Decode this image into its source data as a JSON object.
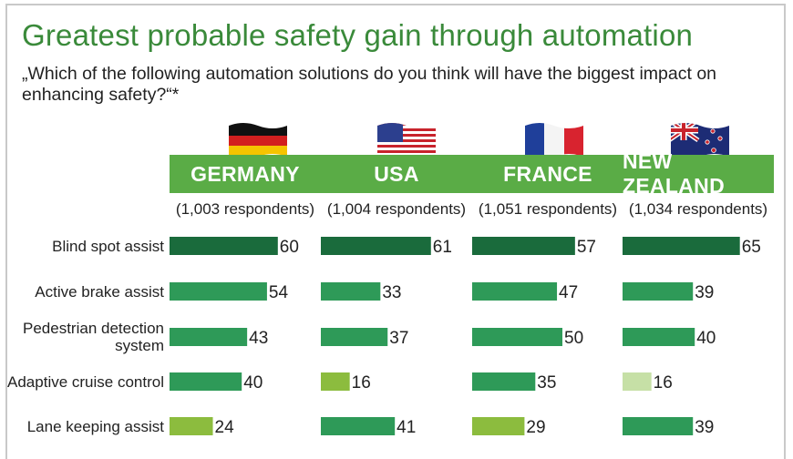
{
  "title": "Greatest probable safety gain through automation",
  "subtitle": "„Which of the following automation solutions do you think will have the biggest impact on enhancing safety?“*",
  "colors": {
    "title": "#3a8a3a",
    "header": "#5aac46",
    "dark": "#1a6b3c",
    "medium": "#2e9a58",
    "light": "#8cbc3e",
    "pale": "#c6e0a6"
  },
  "countries": [
    {
      "name": "GERMANY",
      "respondents": "(1,003 respondents)",
      "flag": "germany-flag-icon"
    },
    {
      "name": "USA",
      "respondents": "(1,004 respondents)",
      "flag": "usa-flag-icon"
    },
    {
      "name": "FRANCE",
      "respondents": "(1,051 respondents)",
      "flag": "france-flag-icon"
    },
    {
      "name": "NEW ZEALAND",
      "respondents": "(1,034 respondents)",
      "flag": "new-zealand-flag-icon"
    }
  ],
  "chart_data": {
    "type": "bar",
    "categories": [
      "Blind spot assist",
      "Active brake assist",
      "Pedestrian detection system",
      "Adaptive cruise control",
      "Lane keeping assist"
    ],
    "series": [
      {
        "name": "GERMANY",
        "values": [
          60,
          54,
          43,
          40,
          24
        ],
        "shades": [
          "dark",
          "medium",
          "medium",
          "medium",
          "light"
        ]
      },
      {
        "name": "USA",
        "values": [
          61,
          33,
          37,
          16,
          41
        ],
        "shades": [
          "dark",
          "medium",
          "medium",
          "light",
          "medium"
        ]
      },
      {
        "name": "FRANCE",
        "values": [
          57,
          47,
          50,
          35,
          29
        ],
        "shades": [
          "dark",
          "medium",
          "medium",
          "medium",
          "light"
        ]
      },
      {
        "name": "NEW ZEALAND",
        "values": [
          65,
          39,
          40,
          16,
          39
        ],
        "shades": [
          "dark",
          "medium",
          "medium",
          "pale",
          "medium"
        ]
      }
    ]
  }
}
